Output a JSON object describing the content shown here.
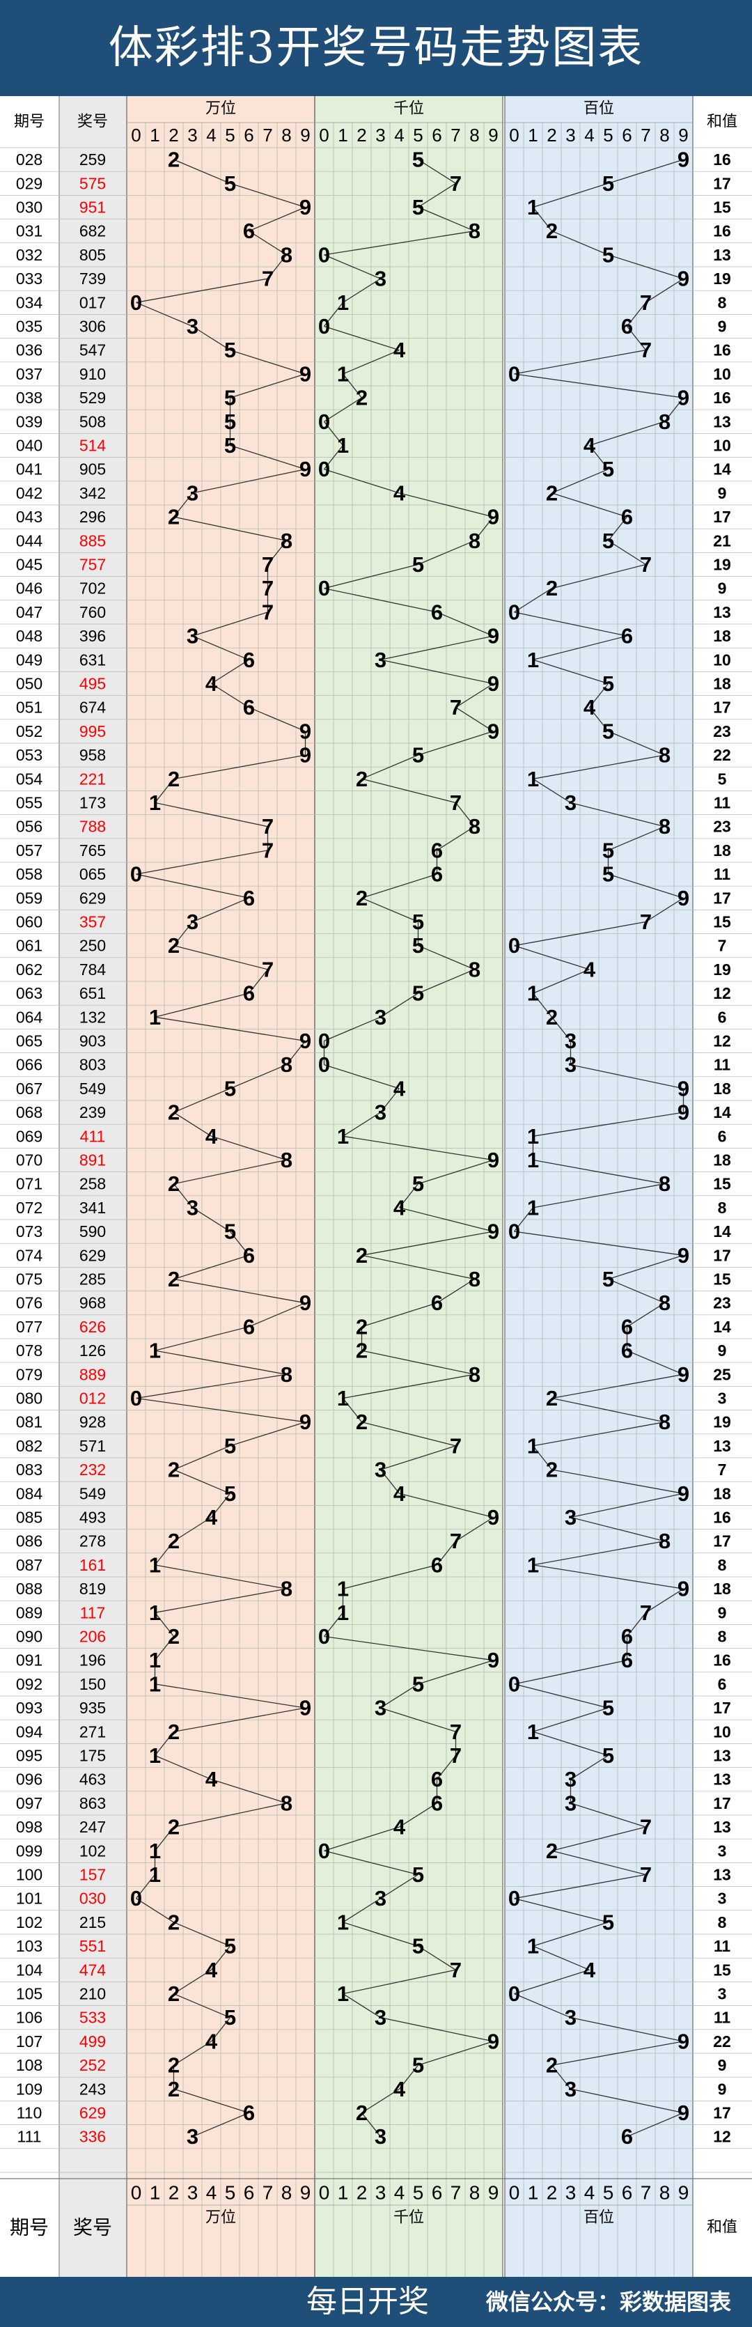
{
  "header": {
    "title": "体彩排3开奖号码走势图表"
  },
  "footer": {
    "left": "每日开奖",
    "right": "微信公众号：彩数据图表"
  },
  "table": {
    "col_issue": "期号",
    "col_number": "奖号",
    "col_sum": "和值",
    "digits": [
      "0",
      "1",
      "2",
      "3",
      "4",
      "5",
      "6",
      "7",
      "8",
      "9"
    ],
    "groups": [
      {
        "name": "万位",
        "color": "#fbe4d5"
      },
      {
        "name": "千位",
        "color": "#e2efd9"
      },
      {
        "name": "百位",
        "color": "#deeaf6"
      }
    ],
    "highlight_color": "#ff0000"
  },
  "chart_data": {
    "type": "table",
    "rows": [
      {
        "issue": "028",
        "number": "259",
        "sum": 16,
        "red": false
      },
      {
        "issue": "029",
        "number": "575",
        "sum": 17,
        "red": true
      },
      {
        "issue": "030",
        "number": "951",
        "sum": 15,
        "red": true
      },
      {
        "issue": "031",
        "number": "682",
        "sum": 16,
        "red": false
      },
      {
        "issue": "032",
        "number": "805",
        "sum": 13,
        "red": false
      },
      {
        "issue": "033",
        "number": "739",
        "sum": 19,
        "red": false
      },
      {
        "issue": "034",
        "number": "017",
        "sum": 8,
        "red": false
      },
      {
        "issue": "035",
        "number": "306",
        "sum": 9,
        "red": false
      },
      {
        "issue": "036",
        "number": "547",
        "sum": 16,
        "red": false
      },
      {
        "issue": "037",
        "number": "910",
        "sum": 10,
        "red": false
      },
      {
        "issue": "038",
        "number": "529",
        "sum": 16,
        "red": false
      },
      {
        "issue": "039",
        "number": "508",
        "sum": 13,
        "red": false
      },
      {
        "issue": "040",
        "number": "514",
        "sum": 10,
        "red": true
      },
      {
        "issue": "041",
        "number": "905",
        "sum": 14,
        "red": false
      },
      {
        "issue": "042",
        "number": "342",
        "sum": 9,
        "red": false
      },
      {
        "issue": "043",
        "number": "296",
        "sum": 17,
        "red": false
      },
      {
        "issue": "044",
        "number": "885",
        "sum": 21,
        "red": true
      },
      {
        "issue": "045",
        "number": "757",
        "sum": 19,
        "red": true
      },
      {
        "issue": "046",
        "number": "702",
        "sum": 9,
        "red": false
      },
      {
        "issue": "047",
        "number": "760",
        "sum": 13,
        "red": false
      },
      {
        "issue": "048",
        "number": "396",
        "sum": 18,
        "red": false
      },
      {
        "issue": "049",
        "number": "631",
        "sum": 10,
        "red": false
      },
      {
        "issue": "050",
        "number": "495",
        "sum": 18,
        "red": true
      },
      {
        "issue": "051",
        "number": "674",
        "sum": 17,
        "red": false
      },
      {
        "issue": "052",
        "number": "995",
        "sum": 23,
        "red": true
      },
      {
        "issue": "053",
        "number": "958",
        "sum": 22,
        "red": false
      },
      {
        "issue": "054",
        "number": "221",
        "sum": 5,
        "red": true
      },
      {
        "issue": "055",
        "number": "173",
        "sum": 11,
        "red": false
      },
      {
        "issue": "056",
        "number": "788",
        "sum": 23,
        "red": true
      },
      {
        "issue": "057",
        "number": "765",
        "sum": 18,
        "red": false
      },
      {
        "issue": "058",
        "number": "065",
        "sum": 11,
        "red": false
      },
      {
        "issue": "059",
        "number": "629",
        "sum": 17,
        "red": false
      },
      {
        "issue": "060",
        "number": "357",
        "sum": 15,
        "red": true
      },
      {
        "issue": "061",
        "number": "250",
        "sum": 7,
        "red": false
      },
      {
        "issue": "062",
        "number": "784",
        "sum": 19,
        "red": false
      },
      {
        "issue": "063",
        "number": "651",
        "sum": 12,
        "red": false
      },
      {
        "issue": "064",
        "number": "132",
        "sum": 6,
        "red": false
      },
      {
        "issue": "065",
        "number": "903",
        "sum": 12,
        "red": false
      },
      {
        "issue": "066",
        "number": "803",
        "sum": 11,
        "red": false
      },
      {
        "issue": "067",
        "number": "549",
        "sum": 18,
        "red": false
      },
      {
        "issue": "068",
        "number": "239",
        "sum": 14,
        "red": false
      },
      {
        "issue": "069",
        "number": "411",
        "sum": 6,
        "red": true
      },
      {
        "issue": "070",
        "number": "891",
        "sum": 18,
        "red": true
      },
      {
        "issue": "071",
        "number": "258",
        "sum": 15,
        "red": false
      },
      {
        "issue": "072",
        "number": "341",
        "sum": 8,
        "red": false
      },
      {
        "issue": "073",
        "number": "590",
        "sum": 14,
        "red": false
      },
      {
        "issue": "074",
        "number": "629",
        "sum": 17,
        "red": false
      },
      {
        "issue": "075",
        "number": "285",
        "sum": 15,
        "red": false
      },
      {
        "issue": "076",
        "number": "968",
        "sum": 23,
        "red": false
      },
      {
        "issue": "077",
        "number": "626",
        "sum": 14,
        "red": true
      },
      {
        "issue": "078",
        "number": "126",
        "sum": 9,
        "red": false
      },
      {
        "issue": "079",
        "number": "889",
        "sum": 25,
        "red": true
      },
      {
        "issue": "080",
        "number": "012",
        "sum": 3,
        "red": true
      },
      {
        "issue": "081",
        "number": "928",
        "sum": 19,
        "red": false
      },
      {
        "issue": "082",
        "number": "571",
        "sum": 13,
        "red": false
      },
      {
        "issue": "083",
        "number": "232",
        "sum": 7,
        "red": true
      },
      {
        "issue": "084",
        "number": "549",
        "sum": 18,
        "red": false
      },
      {
        "issue": "085",
        "number": "493",
        "sum": 16,
        "red": false
      },
      {
        "issue": "086",
        "number": "278",
        "sum": 17,
        "red": false
      },
      {
        "issue": "087",
        "number": "161",
        "sum": 8,
        "red": true
      },
      {
        "issue": "088",
        "number": "819",
        "sum": 18,
        "red": false
      },
      {
        "issue": "089",
        "number": "117",
        "sum": 9,
        "red": true
      },
      {
        "issue": "090",
        "number": "206",
        "sum": 8,
        "red": true
      },
      {
        "issue": "091",
        "number": "196",
        "sum": 16,
        "red": false
      },
      {
        "issue": "092",
        "number": "150",
        "sum": 6,
        "red": false
      },
      {
        "issue": "093",
        "number": "935",
        "sum": 17,
        "red": false
      },
      {
        "issue": "094",
        "number": "271",
        "sum": 10,
        "red": false
      },
      {
        "issue": "095",
        "number": "175",
        "sum": 13,
        "red": false
      },
      {
        "issue": "096",
        "number": "463",
        "sum": 13,
        "red": false
      },
      {
        "issue": "097",
        "number": "863",
        "sum": 17,
        "red": false
      },
      {
        "issue": "098",
        "number": "247",
        "sum": 13,
        "red": false
      },
      {
        "issue": "099",
        "number": "102",
        "sum": 3,
        "red": false
      },
      {
        "issue": "100",
        "number": "157",
        "sum": 13,
        "red": true
      },
      {
        "issue": "101",
        "number": "030",
        "sum": 3,
        "red": true
      },
      {
        "issue": "102",
        "number": "215",
        "sum": 8,
        "red": false
      },
      {
        "issue": "103",
        "number": "551",
        "sum": 11,
        "red": true
      },
      {
        "issue": "104",
        "number": "474",
        "sum": 15,
        "red": true
      },
      {
        "issue": "105",
        "number": "210",
        "sum": 3,
        "red": false
      },
      {
        "issue": "106",
        "number": "533",
        "sum": 11,
        "red": true
      },
      {
        "issue": "107",
        "number": "499",
        "sum": 22,
        "red": true
      },
      {
        "issue": "108",
        "number": "252",
        "sum": 9,
        "red": true
      },
      {
        "issue": "109",
        "number": "243",
        "sum": 9,
        "red": false
      },
      {
        "issue": "110",
        "number": "629",
        "sum": 17,
        "red": true
      },
      {
        "issue": "111",
        "number": "336",
        "sum": 12,
        "red": true
      }
    ]
  }
}
